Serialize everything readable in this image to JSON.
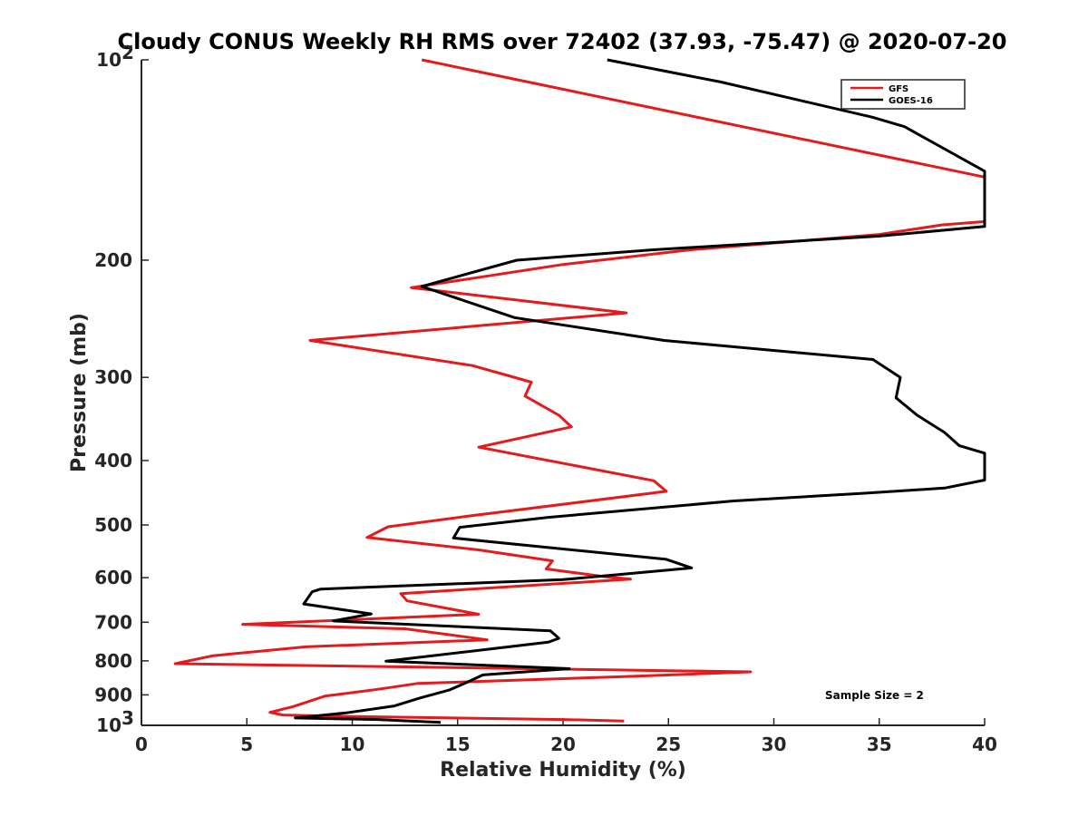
{
  "chart_data": {
    "type": "line",
    "title": "Cloudy CONUS Weekly RH RMS over 72402 (37.93, -75.47) @ 2020-07-20",
    "xlabel": "Relative Humidity (%)",
    "ylabel": "Pressure (mb)",
    "xlim": [
      0,
      40
    ],
    "ylim": [
      100,
      1000
    ],
    "y_scale": "log",
    "y_reversed": true,
    "x_ticks": [
      "0",
      "5",
      "10",
      "15",
      "20",
      "25",
      "30",
      "35",
      "40"
    ],
    "y_ticks": [
      {
        "value": 100,
        "label": "10",
        "sup": "2"
      },
      {
        "value": 200,
        "label": "200",
        "sup": ""
      },
      {
        "value": 300,
        "label": "300",
        "sup": ""
      },
      {
        "value": 400,
        "label": "400",
        "sup": ""
      },
      {
        "value": 500,
        "label": "500",
        "sup": ""
      },
      {
        "value": 600,
        "label": "600",
        "sup": ""
      },
      {
        "value": 700,
        "label": "700",
        "sup": ""
      },
      {
        "value": 800,
        "label": "800",
        "sup": ""
      },
      {
        "value": 900,
        "label": "900",
        "sup": ""
      },
      {
        "value": 1000,
        "label": "10",
        "sup": "3"
      }
    ],
    "grid": false,
    "legend_position": "top-right",
    "annotation": "Sample Size = 2",
    "series": [
      {
        "name": "GFS",
        "color": "#e41a1c",
        "points": [
          [
            13.3,
            100
          ],
          [
            40,
            150
          ],
          [
            40,
            175
          ],
          [
            38,
            177
          ],
          [
            35,
            183
          ],
          [
            26,
            193
          ],
          [
            20,
            203
          ],
          [
            12.8,
            220
          ],
          [
            23,
            240
          ],
          [
            8,
            264
          ],
          [
            15.7,
            288
          ],
          [
            18.5,
            305
          ],
          [
            18.2,
            320
          ],
          [
            19.8,
            342
          ],
          [
            20.4,
            356
          ],
          [
            16,
            382
          ],
          [
            24.3,
            429
          ],
          [
            24.9,
            445
          ],
          [
            15.5,
            485
          ],
          [
            11.7,
            503
          ],
          [
            10.7,
            522
          ],
          [
            16,
            545
          ],
          [
            19.5,
            566
          ],
          [
            19.2,
            582
          ],
          [
            22,
            598
          ],
          [
            23.2,
            603
          ],
          [
            12.3,
            634
          ],
          [
            12.6,
            650
          ],
          [
            16,
            681
          ],
          [
            4.8,
            705
          ],
          [
            12.5,
            716
          ],
          [
            16.4,
            744
          ],
          [
            7.8,
            762
          ],
          [
            3.4,
            786
          ],
          [
            1.6,
            808
          ],
          [
            16,
            820
          ],
          [
            28.9,
            831
          ],
          [
            22.9,
            845
          ],
          [
            13.1,
            865
          ],
          [
            11.2,
            883
          ],
          [
            8.7,
            904
          ],
          [
            7.2,
            937
          ],
          [
            6.1,
            956
          ],
          [
            6.7,
            965
          ],
          [
            10.1,
            970
          ],
          [
            20,
            980
          ],
          [
            22.9,
            985
          ]
        ]
      },
      {
        "name": "GOES-16",
        "color": "#000000",
        "points": [
          [
            22.1,
            100
          ],
          [
            27.5,
            108
          ],
          [
            34.7,
            122
          ],
          [
            36.2,
            126
          ],
          [
            40,
            147
          ],
          [
            40,
            178
          ],
          [
            35,
            184
          ],
          [
            24.2,
            193
          ],
          [
            17.8,
            200
          ],
          [
            13.3,
            219
          ],
          [
            17.7,
            244
          ],
          [
            24.8,
            264
          ],
          [
            34.7,
            282
          ],
          [
            36,
            300
          ],
          [
            35.8,
            322
          ],
          [
            36.8,
            342
          ],
          [
            38.1,
            363
          ],
          [
            38.8,
            380
          ],
          [
            40,
            390
          ],
          [
            40,
            428
          ],
          [
            38.1,
            440
          ],
          [
            34.3,
            448
          ],
          [
            28.1,
            460
          ],
          [
            19.3,
            487
          ],
          [
            15.1,
            504
          ],
          [
            14.8,
            523
          ],
          [
            21.2,
            548
          ],
          [
            24.9,
            563
          ],
          [
            26.1,
            580
          ],
          [
            20,
            604
          ],
          [
            8.5,
            624
          ],
          [
            8.1,
            630
          ],
          [
            7.7,
            657
          ],
          [
            10.9,
            680
          ],
          [
            9.1,
            697
          ],
          [
            19.4,
            721
          ],
          [
            19.8,
            740
          ],
          [
            19.3,
            750
          ],
          [
            16.2,
            770
          ],
          [
            11.6,
            801
          ],
          [
            20.3,
            822
          ],
          [
            16.2,
            840
          ],
          [
            15.4,
            863
          ],
          [
            14.6,
            885
          ],
          [
            13.2,
            910
          ],
          [
            12,
            935
          ],
          [
            9.7,
            958
          ],
          [
            7.3,
            975
          ],
          [
            11.2,
            980
          ],
          [
            14.2,
            990
          ]
        ]
      }
    ]
  }
}
